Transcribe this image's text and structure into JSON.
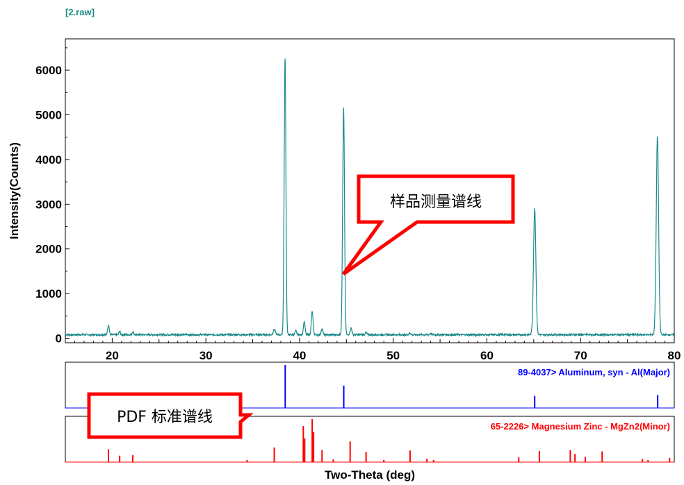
{
  "colors": {
    "measured": "#1a8a8a",
    "ref1": "#0000ff",
    "ref2": "#ff0000",
    "callout": "#ff0000",
    "frame": "#000000"
  },
  "chart_data": {
    "type": "line",
    "title": "[2.raw]",
    "xlabel": "Two-Theta (deg)",
    "ylabel": "Intensity(Counts)",
    "xlim": [
      15,
      80
    ],
    "ylim": [
      -100,
      6700
    ],
    "xticks": [
      20,
      30,
      40,
      50,
      60,
      70,
      80
    ],
    "yticks": [
      0,
      1000,
      2000,
      3000,
      4000,
      5000,
      6000
    ],
    "grid": false,
    "series": [
      {
        "name": "2.raw",
        "baseline": 80,
        "peaks": [
          {
            "x": 19.6,
            "y": 220,
            "w": 0.12
          },
          {
            "x": 20.8,
            "y": 80,
            "w": 0.1
          },
          {
            "x": 22.2,
            "y": 70,
            "w": 0.1
          },
          {
            "x": 37.3,
            "y": 120,
            "w": 0.15
          },
          {
            "x": 38.45,
            "y": 6230,
            "w": 0.13
          },
          {
            "x": 39.6,
            "y": 90,
            "w": 0.12
          },
          {
            "x": 40.5,
            "y": 300,
            "w": 0.12
          },
          {
            "x": 41.35,
            "y": 520,
            "w": 0.13
          },
          {
            "x": 42.4,
            "y": 140,
            "w": 0.12
          },
          {
            "x": 44.7,
            "y": 5080,
            "w": 0.14
          },
          {
            "x": 45.5,
            "y": 150,
            "w": 0.13
          },
          {
            "x": 47.1,
            "y": 50,
            "w": 0.12
          },
          {
            "x": 51.8,
            "y": 40,
            "w": 0.12
          },
          {
            "x": 54.0,
            "y": 30,
            "w": 0.12
          },
          {
            "x": 65.1,
            "y": 2830,
            "w": 0.18
          },
          {
            "x": 78.2,
            "y": 4450,
            "w": 0.18
          }
        ]
      }
    ],
    "reference_patterns": [
      {
        "label": "89-4037> Aluminum, syn - Al(Major)",
        "color": "#0000ff",
        "sticks": [
          {
            "x": 38.47,
            "rel": 100
          },
          {
            "x": 44.72,
            "rel": 52
          },
          {
            "x": 65.1,
            "rel": 28
          },
          {
            "x": 78.23,
            "rel": 30
          }
        ]
      },
      {
        "label": "65-2226> Magnesium Zinc - MgZn2(Minor)",
        "color": "#ff0000",
        "sticks": [
          {
            "x": 19.6,
            "rel": 30
          },
          {
            "x": 20.8,
            "rel": 15
          },
          {
            "x": 22.2,
            "rel": 16
          },
          {
            "x": 34.4,
            "rel": 5
          },
          {
            "x": 37.3,
            "rel": 34
          },
          {
            "x": 40.4,
            "rel": 84
          },
          {
            "x": 40.55,
            "rel": 55
          },
          {
            "x": 41.35,
            "rel": 100
          },
          {
            "x": 41.5,
            "rel": 70
          },
          {
            "x": 42.4,
            "rel": 28
          },
          {
            "x": 43.6,
            "rel": 6
          },
          {
            "x": 45.4,
            "rel": 48
          },
          {
            "x": 47.1,
            "rel": 24
          },
          {
            "x": 49.0,
            "rel": 5
          },
          {
            "x": 51.8,
            "rel": 27
          },
          {
            "x": 53.6,
            "rel": 8
          },
          {
            "x": 54.3,
            "rel": 5
          },
          {
            "x": 63.4,
            "rel": 11
          },
          {
            "x": 65.6,
            "rel": 26
          },
          {
            "x": 68.9,
            "rel": 28
          },
          {
            "x": 69.4,
            "rel": 19
          },
          {
            "x": 70.5,
            "rel": 12
          },
          {
            "x": 72.3,
            "rel": 25
          },
          {
            "x": 76.6,
            "rel": 7
          },
          {
            "x": 77.2,
            "rel": 5
          },
          {
            "x": 79.5,
            "rel": 10
          }
        ]
      }
    ]
  },
  "annotations": {
    "sample_callout": "样品测量谱线",
    "pdf_callout": "PDF 标准谱线"
  }
}
